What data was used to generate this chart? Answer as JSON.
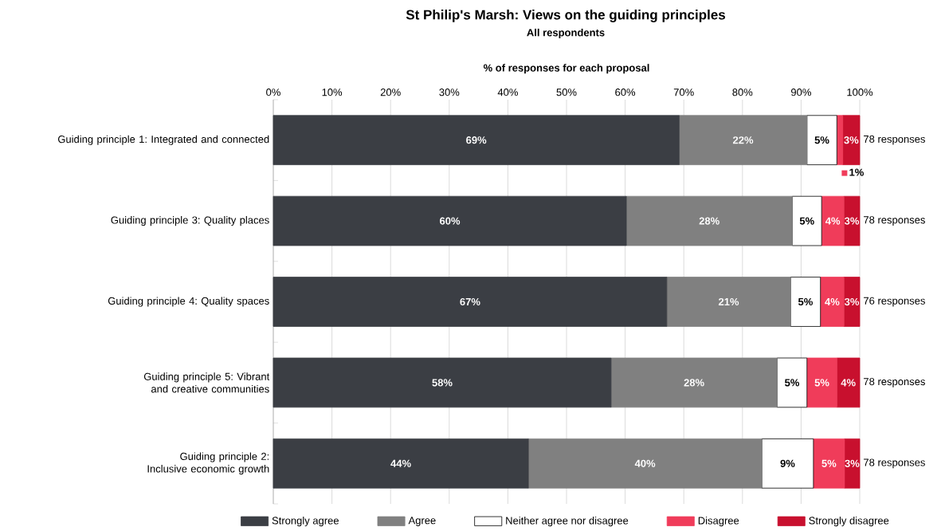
{
  "chart_data": {
    "type": "bar",
    "orientation": "horizontal",
    "stacked": true,
    "title": "St Philip's Marsh: Views on the guiding principles",
    "subtitle": "All respondents",
    "xlabel": "% of responses for each proposal",
    "categories": [
      "Guiding principle 1: Integrated and connected",
      "Guiding principle 3: Quality places",
      "Guiding principle 4: Quality spaces",
      "Guiding principle 5: Vibrant and creative communities",
      "Guiding principle 2: Inclusive economic growth"
    ],
    "series": [
      {
        "name": "Strongly agree",
        "color": "#3b3e44",
        "values": [
          69.2,
          60.2,
          67.1,
          57.6,
          43.5
        ],
        "value_labels": [
          "69%",
          "60%",
          "67%",
          "58%",
          "44%"
        ]
      },
      {
        "name": "Agree",
        "color": "#808080",
        "values": [
          21.8,
          28.3,
          21.1,
          28.3,
          39.8
        ],
        "value_labels": [
          "22%",
          "28%",
          "21%",
          "28%",
          "40%"
        ]
      },
      {
        "name": "Neither agree nor disagree",
        "color": "#ffffff",
        "values": [
          5.1,
          5.0,
          5.1,
          5.1,
          8.8
        ],
        "value_labels": [
          "5%",
          "5%",
          "5%",
          "5%",
          "9%"
        ]
      },
      {
        "name": "Disagree",
        "color": "#f03c5a",
        "values": [
          1.0,
          3.8,
          4.0,
          5.1,
          5.3
        ],
        "value_labels": [
          "1%",
          "4%",
          "4%",
          "5%",
          "5%"
        ]
      },
      {
        "name": "Strongly disagree",
        "color": "#c8102e",
        "values": [
          2.9,
          2.7,
          2.7,
          3.9,
          2.6
        ],
        "value_labels": [
          "3%",
          "3%",
          "3%",
          "4%",
          "3%"
        ]
      }
    ],
    "xlim": [
      0,
      100
    ],
    "xticks": [
      {
        "value": 0,
        "label": "0%"
      },
      {
        "value": 10,
        "label": "10%"
      },
      {
        "value": 20,
        "label": "20%"
      },
      {
        "value": 30,
        "label": "30%"
      },
      {
        "value": 40,
        "label": "40%"
      },
      {
        "value": 50,
        "label": "50%"
      },
      {
        "value": 60,
        "label": "60%"
      },
      {
        "value": 70,
        "label": "70%"
      },
      {
        "value": 80,
        "label": "80%"
      },
      {
        "value": 90,
        "label": "90%"
      },
      {
        "value": 100,
        "label": "100%"
      }
    ],
    "grid": "x",
    "legend": "bottom",
    "annotations": [
      "78 responses",
      "78 responses",
      "76 responses",
      "78 responses",
      "78 responses"
    ]
  }
}
